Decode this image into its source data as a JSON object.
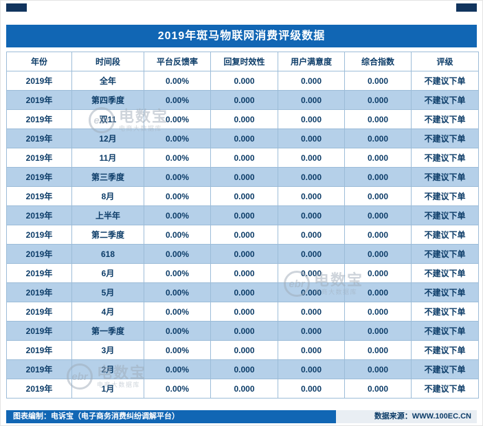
{
  "page": {
    "title": "2019年斑马物联网消费评级数据"
  },
  "table": {
    "columns": [
      "年份",
      "时间段",
      "平台反馈率",
      "回复时效性",
      "用户满意度",
      "综合指数",
      "评级"
    ],
    "rows": [
      {
        "year": "2019年",
        "period": "全年",
        "feedback_rate": "0.00%",
        "reply_timeliness": "0.000",
        "satisfaction": "0.000",
        "composite_index": "0.000",
        "rating": "不建议下单"
      },
      {
        "year": "2019年",
        "period": "第四季度",
        "feedback_rate": "0.00%",
        "reply_timeliness": "0.000",
        "satisfaction": "0.000",
        "composite_index": "0.000",
        "rating": "不建议下单"
      },
      {
        "year": "2019年",
        "period": "双11",
        "feedback_rate": "0.00%",
        "reply_timeliness": "0.000",
        "satisfaction": "0.000",
        "composite_index": "0.000",
        "rating": "不建议下单"
      },
      {
        "year": "2019年",
        "period": "12月",
        "feedback_rate": "0.00%",
        "reply_timeliness": "0.000",
        "satisfaction": "0.000",
        "composite_index": "0.000",
        "rating": "不建议下单"
      },
      {
        "year": "2019年",
        "period": "11月",
        "feedback_rate": "0.00%",
        "reply_timeliness": "0.000",
        "satisfaction": "0.000",
        "composite_index": "0.000",
        "rating": "不建议下单"
      },
      {
        "year": "2019年",
        "period": "第三季度",
        "feedback_rate": "0.00%",
        "reply_timeliness": "0.000",
        "satisfaction": "0.000",
        "composite_index": "0.000",
        "rating": "不建议下单"
      },
      {
        "year": "2019年",
        "period": "8月",
        "feedback_rate": "0.00%",
        "reply_timeliness": "0.000",
        "satisfaction": "0.000",
        "composite_index": "0.000",
        "rating": "不建议下单"
      },
      {
        "year": "2019年",
        "period": "上半年",
        "feedback_rate": "0.00%",
        "reply_timeliness": "0.000",
        "satisfaction": "0.000",
        "composite_index": "0.000",
        "rating": "不建议下单"
      },
      {
        "year": "2019年",
        "period": "第二季度",
        "feedback_rate": "0.00%",
        "reply_timeliness": "0.000",
        "satisfaction": "0.000",
        "composite_index": "0.000",
        "rating": "不建议下单"
      },
      {
        "year": "2019年",
        "period": "618",
        "feedback_rate": "0.00%",
        "reply_timeliness": "0.000",
        "satisfaction": "0.000",
        "composite_index": "0.000",
        "rating": "不建议下单"
      },
      {
        "year": "2019年",
        "period": "6月",
        "feedback_rate": "0.00%",
        "reply_timeliness": "0.000",
        "satisfaction": "0.000",
        "composite_index": "0.000",
        "rating": "不建议下单"
      },
      {
        "year": "2019年",
        "period": "5月",
        "feedback_rate": "0.00%",
        "reply_timeliness": "0.000",
        "satisfaction": "0.000",
        "composite_index": "0.000",
        "rating": "不建议下单"
      },
      {
        "year": "2019年",
        "period": "4月",
        "feedback_rate": "0.00%",
        "reply_timeliness": "0.000",
        "satisfaction": "0.000",
        "composite_index": "0.000",
        "rating": "不建议下单"
      },
      {
        "year": "2019年",
        "period": "第一季度",
        "feedback_rate": "0.00%",
        "reply_timeliness": "0.000",
        "satisfaction": "0.000",
        "composite_index": "0.000",
        "rating": "不建议下单"
      },
      {
        "year": "2019年",
        "period": "3月",
        "feedback_rate": "0.00%",
        "reply_timeliness": "0.000",
        "satisfaction": "0.000",
        "composite_index": "0.000",
        "rating": "不建议下单"
      },
      {
        "year": "2019年",
        "period": "2月",
        "feedback_rate": "0.00%",
        "reply_timeliness": "0.000",
        "satisfaction": "0.000",
        "composite_index": "0.000",
        "rating": "不建议下单"
      },
      {
        "year": "2019年",
        "period": "1月",
        "feedback_rate": "0.00%",
        "reply_timeliness": "0.000",
        "satisfaction": "0.000",
        "composite_index": "0.000",
        "rating": "不建议下单"
      }
    ]
  },
  "footer": {
    "left": "图表编制：电诉宝（电子商务消费纠纷调解平台）",
    "right": "数据来源：WWW.100EC.CN"
  },
  "watermark": {
    "logo_text": "ebr",
    "text": "电数宝",
    "subtext": "电商大数据库"
  },
  "colors": {
    "header_blue": "#1166B4",
    "corner_navy": "#11345E",
    "row_alt_blue": "#B5D0E9",
    "text_navy": "#0C3C68",
    "border_blue": "#9CBCD8",
    "footer_right_bg": "#E9EEF3",
    "watermark_gray": "#9FABB8"
  }
}
